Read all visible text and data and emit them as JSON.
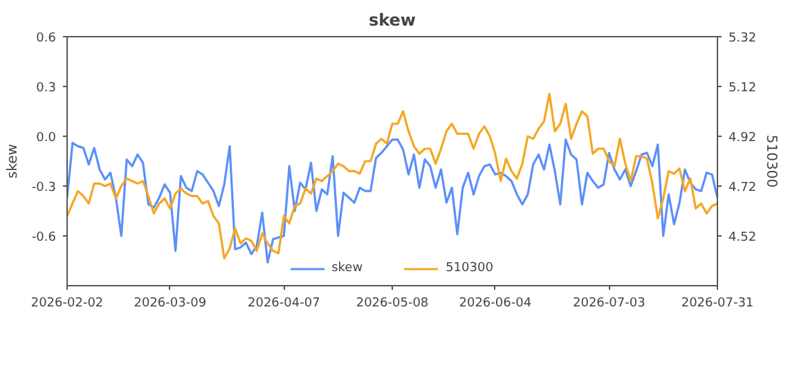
{
  "chart_data": {
    "type": "line",
    "title": "skew",
    "ylabel": "skew",
    "y2label": "510300",
    "categories": [
      "2026-02-02",
      null,
      null,
      null,
      null,
      null,
      null,
      null,
      null,
      null,
      null,
      null,
      null,
      null,
      null,
      null,
      null,
      null,
      null,
      "2026-03-09",
      null,
      null,
      null,
      null,
      null,
      null,
      null,
      null,
      null,
      null,
      null,
      null,
      null,
      null,
      null,
      null,
      null,
      null,
      null,
      null,
      "2026-04-07",
      null,
      null,
      null,
      null,
      null,
      null,
      null,
      null,
      null,
      null,
      null,
      null,
      null,
      null,
      null,
      null,
      null,
      null,
      null,
      "2026-05-08",
      null,
      null,
      null,
      null,
      null,
      null,
      null,
      null,
      null,
      null,
      null,
      null,
      null,
      null,
      null,
      null,
      null,
      null,
      "2026-06-04",
      null,
      null,
      null,
      null,
      null,
      null,
      null,
      null,
      null,
      null,
      null,
      null,
      null,
      null,
      null,
      null,
      null,
      null,
      null,
      null,
      "2026-07-03",
      null,
      null,
      null,
      null,
      null,
      null,
      null,
      null,
      null,
      null,
      null,
      null,
      null,
      null,
      null,
      null,
      null,
      null,
      null,
      "2026-07-31"
    ],
    "ylim": [
      -0.9,
      0.6
    ],
    "yticks": [
      -0.6,
      -0.3,
      {
        "value": 0,
        "label": "0.0"
      },
      0.3,
      0.6
    ],
    "y2lim": [
      4.32,
      5.32
    ],
    "y2ticks": [
      4.52,
      4.72,
      4.92,
      5.12,
      5.32
    ],
    "grid": false,
    "legend": "bottom",
    "series": [
      {
        "name": "skew",
        "color": "#5b8ff9",
        "values": [
          -0.37,
          -0.04,
          -0.06,
          -0.07,
          -0.17,
          -0.07,
          -0.2,
          -0.26,
          -0.22,
          -0.37,
          -0.6,
          -0.14,
          -0.18,
          -0.11,
          -0.16,
          -0.41,
          -0.43,
          -0.37,
          -0.29,
          -0.34,
          -0.69,
          -0.24,
          -0.31,
          -0.33,
          -0.21,
          -0.23,
          -0.28,
          -0.33,
          -0.42,
          -0.29,
          -0.06,
          -0.68,
          -0.67,
          -0.64,
          -0.71,
          -0.66,
          -0.46,
          -0.76,
          -0.62,
          -0.61,
          -0.6,
          -0.18,
          -0.45,
          -0.28,
          -0.32,
          -0.16,
          -0.45,
          -0.32,
          -0.35,
          -0.12,
          -0.6,
          -0.34,
          -0.37,
          -0.4,
          -0.31,
          -0.33,
          -0.33,
          -0.13,
          -0.1,
          -0.06,
          -0.02,
          -0.02,
          -0.08,
          -0.23,
          -0.11,
          -0.31,
          -0.14,
          -0.18,
          -0.31,
          -0.2,
          -0.4,
          -0.31,
          -0.59,
          -0.31,
          -0.22,
          -0.35,
          -0.24,
          -0.18,
          -0.17,
          -0.23,
          -0.22,
          -0.24,
          -0.27,
          -0.35,
          -0.41,
          -0.35,
          -0.17,
          -0.11,
          -0.2,
          -0.05,
          -0.21,
          -0.41,
          -0.02,
          -0.11,
          -0.14,
          -0.41,
          -0.22,
          -0.27,
          -0.31,
          -0.29,
          -0.1,
          -0.2,
          -0.26,
          -0.2,
          -0.3,
          -0.21,
          -0.11,
          -0.1,
          -0.18,
          -0.05,
          -0.6,
          -0.35,
          -0.53,
          -0.4,
          -0.2,
          -0.28,
          -0.32,
          -0.33,
          -0.22,
          -0.23,
          -0.37
        ]
      },
      {
        "name": "510300",
        "color": "#f5a623",
        "axis": "y2",
        "values": [
          4.6,
          4.65,
          4.7,
          4.68,
          4.65,
          4.73,
          4.73,
          4.72,
          4.73,
          4.67,
          4.72,
          4.75,
          4.74,
          4.73,
          4.74,
          4.68,
          4.61,
          4.65,
          4.67,
          4.63,
          4.69,
          4.71,
          4.69,
          4.68,
          4.68,
          4.65,
          4.66,
          4.6,
          4.57,
          4.43,
          4.47,
          4.55,
          4.49,
          4.51,
          4.5,
          4.46,
          4.53,
          4.49,
          4.46,
          4.45,
          4.6,
          4.57,
          4.64,
          4.65,
          4.71,
          4.69,
          4.75,
          4.74,
          4.76,
          4.78,
          4.81,
          4.8,
          4.78,
          4.78,
          4.77,
          4.82,
          4.82,
          4.89,
          4.91,
          4.89,
          4.97,
          4.97,
          5.02,
          4.94,
          4.88,
          4.85,
          4.87,
          4.87,
          4.81,
          4.87,
          4.94,
          4.97,
          4.93,
          4.93,
          4.93,
          4.87,
          4.93,
          4.96,
          4.92,
          4.85,
          4.74,
          4.83,
          4.78,
          4.75,
          4.81,
          4.92,
          4.91,
          4.95,
          4.98,
          5.09,
          4.94,
          4.97,
          5.05,
          4.91,
          4.97,
          5.02,
          5.0,
          4.85,
          4.87,
          4.87,
          4.82,
          4.8,
          4.91,
          4.81,
          4.74,
          4.84,
          4.84,
          4.83,
          4.73,
          4.59,
          4.67,
          4.78,
          4.77,
          4.79,
          4.7,
          4.75,
          4.63,
          4.65,
          4.61,
          4.64,
          4.65
        ]
      }
    ]
  }
}
